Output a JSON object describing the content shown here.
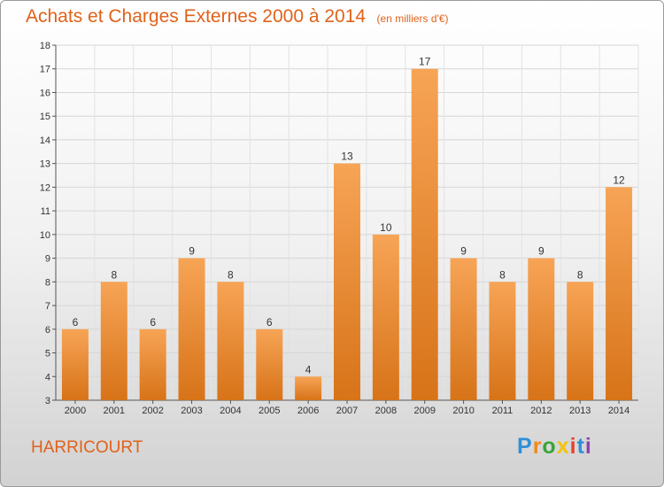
{
  "header": {
    "title": "Achats et Charges Externes 2000 à 2014",
    "unit": "(en milliers d'€)"
  },
  "footer": {
    "commune": "HARRICOURT",
    "brand_letters": [
      "P",
      "r",
      "o",
      "x",
      "i",
      "t",
      "i"
    ]
  },
  "colors": {
    "accent": "#e0621a",
    "bar_top": "#f7a456",
    "bar_bottom": "#d77318",
    "brand": [
      "#2f8fd8",
      "#f08a1c",
      "#3aa535",
      "#f4c20d",
      "#e8402b",
      "#2f8fd8",
      "#8e44ad"
    ]
  },
  "chart_data": {
    "type": "bar",
    "categories": [
      "2000",
      "2001",
      "2002",
      "2003",
      "2004",
      "2005",
      "2006",
      "2007",
      "2008",
      "2009",
      "2010",
      "2011",
      "2012",
      "2013",
      "2014"
    ],
    "values": [
      6,
      8,
      6,
      9,
      8,
      6,
      4,
      13,
      10,
      17,
      9,
      8,
      9,
      8,
      12
    ],
    "ylim": [
      3,
      18
    ],
    "yticks": [
      3,
      4,
      5,
      6,
      7,
      8,
      9,
      10,
      11,
      12,
      13,
      14,
      15,
      16,
      17,
      18
    ],
    "grid": true,
    "data_labels": true
  }
}
